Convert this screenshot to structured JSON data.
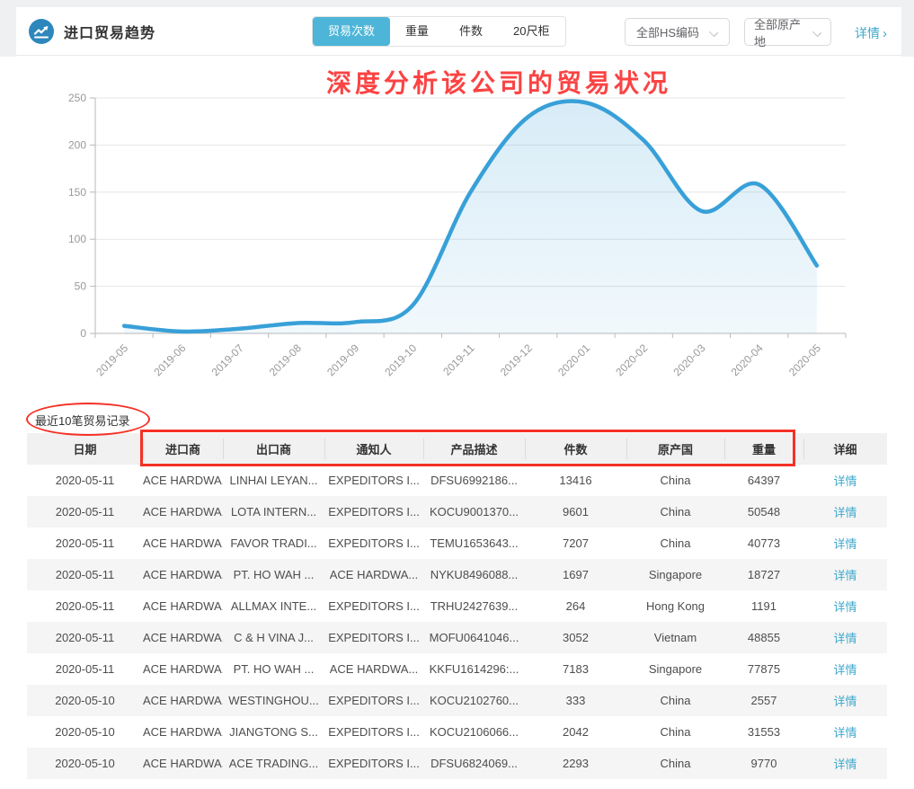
{
  "header": {
    "title": "进口贸易趋势",
    "icon": "trend-up-icon",
    "tabs": [
      {
        "label": "贸易次数",
        "active": true
      },
      {
        "label": "重量",
        "active": false
      },
      {
        "label": "件数",
        "active": false
      },
      {
        "label": "20尺柜",
        "active": false
      }
    ],
    "filters": [
      {
        "label": "全部HS编码"
      },
      {
        "label": "全部原产地"
      }
    ],
    "detail_link": "详情"
  },
  "icons": {
    "chevron_right": "›"
  },
  "annotations": {
    "banner": "深度分析该公司的贸易状况",
    "text_color": "#fb4343",
    "shape_color": "#f53126"
  },
  "chart_data": {
    "type": "area",
    "title": "",
    "xlabel": "",
    "ylabel": "",
    "x": [
      "2019-05",
      "2019-06",
      "2019-07",
      "2019-08",
      "2019-09",
      "2019-10",
      "2019-11",
      "2019-12",
      "2020-01",
      "2020-02",
      "2020-03",
      "2020-04",
      "2020-05"
    ],
    "values": [
      8,
      2,
      5,
      11,
      12,
      30,
      150,
      230,
      245,
      205,
      130,
      158,
      72
    ],
    "y_ticks": [
      0,
      50,
      100,
      150,
      200,
      250
    ],
    "ylim": [
      0,
      250
    ],
    "grid": true,
    "smooth": true,
    "line_color": "#38a0d8",
    "fill_color": "#e3f1f9",
    "axis_label_color": "#999999"
  },
  "table": {
    "section_label": "最近10笔贸易记录",
    "columns": [
      "日期",
      "进口商",
      "出口商",
      "通知人",
      "产品描述",
      "件数",
      "原产国",
      "重量",
      "详细"
    ],
    "row_keys": [
      "date",
      "importer",
      "exporter",
      "notifier",
      "product",
      "qty",
      "origin",
      "weight",
      "detail"
    ],
    "rows": [
      {
        "date": "2020-05-11",
        "importer": "ACE HARDWA...",
        "exporter": "LINHAI LEYAN...",
        "notifier": "EXPEDITORS I...",
        "product": "DFSU6992186...",
        "qty": "13416",
        "origin": "China",
        "weight": "64397",
        "detail": "详情"
      },
      {
        "date": "2020-05-11",
        "importer": "ACE HARDWA...",
        "exporter": "LOTA INTERN...",
        "notifier": "EXPEDITORS I...",
        "product": "KOCU9001370...",
        "qty": "9601",
        "origin": "China",
        "weight": "50548",
        "detail": "详情"
      },
      {
        "date": "2020-05-11",
        "importer": "ACE HARDWA...",
        "exporter": "FAVOR TRADI...",
        "notifier": "EXPEDITORS I...",
        "product": "TEMU1653643...",
        "qty": "7207",
        "origin": "China",
        "weight": "40773",
        "detail": "详情"
      },
      {
        "date": "2020-05-11",
        "importer": "ACE HARDWA...",
        "exporter": "PT. HO WAH ...",
        "notifier": "ACE HARDWA...",
        "product": "NYKU8496088...",
        "qty": "1697",
        "origin": "Singapore",
        "weight": "18727",
        "detail": "详情"
      },
      {
        "date": "2020-05-11",
        "importer": "ACE HARDWA...",
        "exporter": "ALLMAX INTE...",
        "notifier": "EXPEDITORS I...",
        "product": "TRHU2427639...",
        "qty": "264",
        "origin": "Hong Kong",
        "weight": "1191",
        "detail": "详情"
      },
      {
        "date": "2020-05-11",
        "importer": "ACE HARDWA...",
        "exporter": "C & H VINA J...",
        "notifier": "EXPEDITORS I...",
        "product": "MOFU0641046...",
        "qty": "3052",
        "origin": "Vietnam",
        "weight": "48855",
        "detail": "详情"
      },
      {
        "date": "2020-05-11",
        "importer": "ACE HARDWA...",
        "exporter": "PT. HO WAH ...",
        "notifier": "ACE HARDWA...",
        "product": "KKFU1614296:...",
        "qty": "7183",
        "origin": "Singapore",
        "weight": "77875",
        "detail": "详情"
      },
      {
        "date": "2020-05-10",
        "importer": "ACE HARDWA...",
        "exporter": "WESTINGHOU...",
        "notifier": "EXPEDITORS I...",
        "product": "KOCU2102760...",
        "qty": "333",
        "origin": "China",
        "weight": "2557",
        "detail": "详情"
      },
      {
        "date": "2020-05-10",
        "importer": "ACE HARDWA...",
        "exporter": "JIANGTONG S...",
        "notifier": "EXPEDITORS I...",
        "product": "KOCU2106066...",
        "qty": "2042",
        "origin": "China",
        "weight": "31553",
        "detail": "详情"
      },
      {
        "date": "2020-05-10",
        "importer": "ACE HARDWA...",
        "exporter": "ACE TRADING...",
        "notifier": "EXPEDITORS I...",
        "product": "DFSU6824069...",
        "qty": "2293",
        "origin": "China",
        "weight": "9770",
        "detail": "详情"
      }
    ]
  }
}
